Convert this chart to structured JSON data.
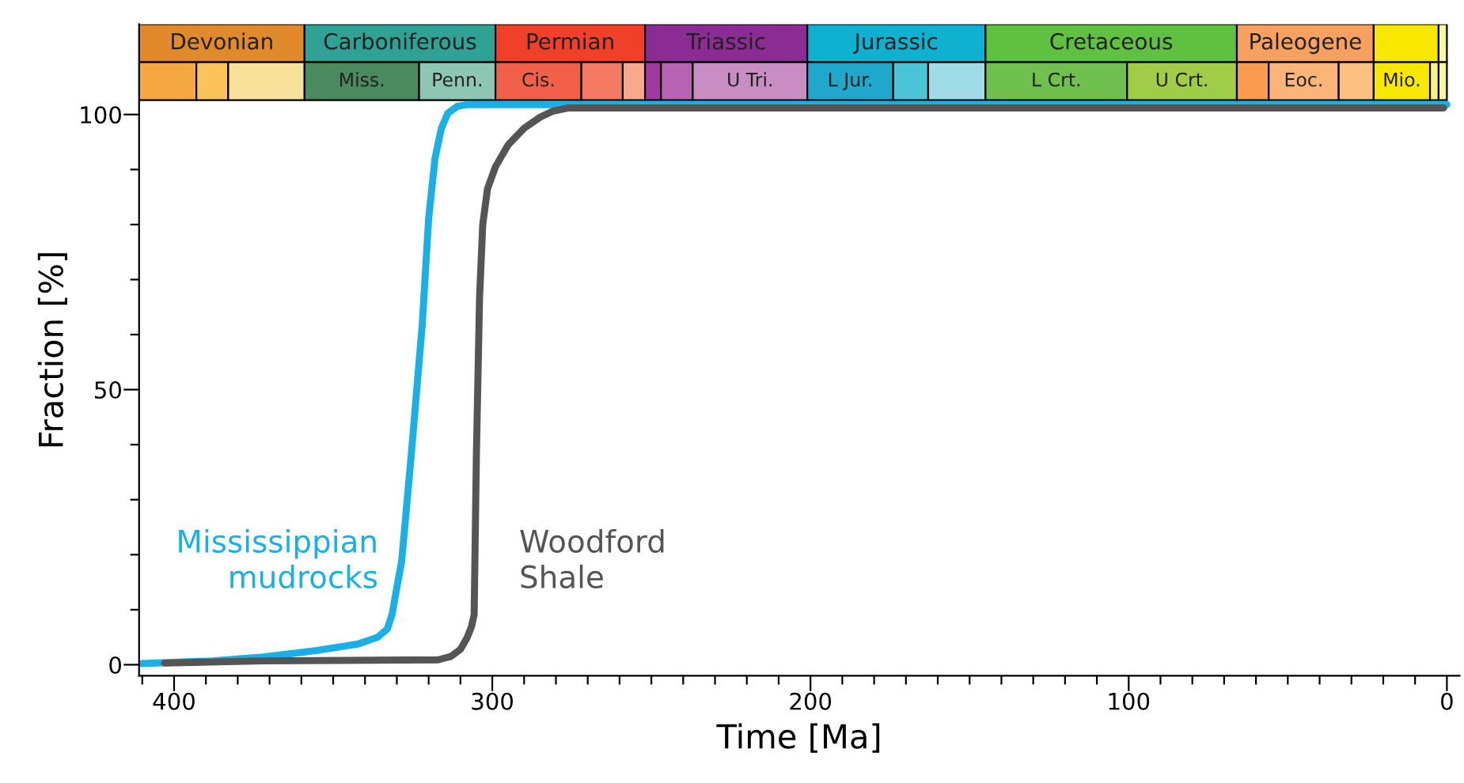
{
  "chart_data": {
    "type": "line",
    "xlabel": "Time [Ma]",
    "ylabel": "Fraction [%]",
    "xlim": [
      411,
      -4
    ],
    "ylim": [
      -2,
      116.4
    ],
    "xticks": [
      {
        "value": 410,
        "label": null
      },
      400,
      {
        "value": 390,
        "label": null
      },
      {
        "value": 380,
        "label": null
      },
      {
        "value": 370,
        "label": null
      },
      {
        "value": 360,
        "label": null
      },
      {
        "value": 350,
        "label": null
      },
      {
        "value": 340,
        "label": null
      },
      {
        "value": 330,
        "label": null
      },
      {
        "value": 320,
        "label": null
      },
      {
        "value": 310,
        "label": null
      },
      300,
      {
        "value": 290,
        "label": null
      },
      {
        "value": 280,
        "label": null
      },
      {
        "value": 270,
        "label": null
      },
      {
        "value": 260,
        "label": null
      },
      {
        "value": 250,
        "label": null
      },
      {
        "value": 240,
        "label": null
      },
      {
        "value": 230,
        "label": null
      },
      {
        "value": 220,
        "label": null
      },
      {
        "value": 210,
        "label": null
      },
      200,
      {
        "value": 190,
        "label": null
      },
      {
        "value": 180,
        "label": null
      },
      {
        "value": 170,
        "label": null
      },
      {
        "value": 160,
        "label": null
      },
      {
        "value": 150,
        "label": null
      },
      {
        "value": 140,
        "label": null
      },
      {
        "value": 130,
        "label": null
      },
      {
        "value": 120,
        "label": null
      },
      {
        "value": 110,
        "label": null
      },
      100,
      {
        "value": 90,
        "label": null
      },
      {
        "value": 80,
        "label": null
      },
      {
        "value": 70,
        "label": null
      },
      {
        "value": 60,
        "label": null
      },
      {
        "value": 50,
        "label": null
      },
      {
        "value": 40,
        "label": null
      },
      {
        "value": 30,
        "label": null
      },
      {
        "value": 20,
        "label": null
      },
      {
        "value": 10,
        "label": null
      },
      0
    ],
    "yticks": [
      0,
      {
        "value": 10,
        "label": null
      },
      {
        "value": 20,
        "label": null
      },
      {
        "value": 30,
        "label": null
      },
      {
        "value": 40,
        "label": null
      },
      50,
      {
        "value": 60,
        "label": null
      },
      {
        "value": 70,
        "label": null
      },
      {
        "value": 80,
        "label": null
      },
      {
        "value": 90,
        "label": null
      },
      100
    ],
    "marker": "none",
    "line_style": "solid",
    "series": [
      {
        "name": "Mississippian mudrocks",
        "color": "#1ab0e6",
        "x": [
          410,
          388,
          372,
          355,
          342,
          336,
          333,
          331.5,
          330,
          328.5,
          325.5,
          322,
          320,
          318,
          316,
          314,
          311,
          308,
          0
        ],
        "values": [
          0.2,
          0.7,
          1.4,
          2.6,
          3.8,
          5,
          6.5,
          9.1,
          14,
          18.7,
          37.9,
          61.9,
          81.1,
          92,
          97.5,
          100.2,
          101.5,
          101.8,
          101.8
        ]
      },
      {
        "name": "Woodford Shale",
        "color": "#555555",
        "x": [
          403,
          372,
          317,
          313,
          310,
          308,
          306.5,
          305.7,
          305,
          304,
          303,
          301.5,
          299,
          295,
          290,
          285,
          281,
          276,
          1
        ],
        "values": [
          0.3,
          0.7,
          0.9,
          1.5,
          2.8,
          4.8,
          7,
          9.1,
          37.9,
          66.7,
          80,
          86.5,
          90.5,
          94.5,
          97.5,
          99.5,
          100.6,
          101.2,
          101.2
        ]
      }
    ],
    "bands": [
      {
        "axis": "x",
        "from": 411,
        "to": 359,
        "label": "Devonian",
        "color": "#e08a2c"
      },
      {
        "axis": "x",
        "from": 359,
        "to": 299,
        "label": "Carboniferous",
        "color": "#30a295"
      },
      {
        "axis": "x",
        "from": 299,
        "to": 252,
        "label": "Permian",
        "color": "#f0402a"
      },
      {
        "axis": "x",
        "from": 252,
        "to": 201,
        "label": "Triassic",
        "color": "#8b2b94"
      },
      {
        "axis": "x",
        "from": 201,
        "to": 145,
        "label": "Jurassic",
        "color": "#10b0d0"
      },
      {
        "axis": "x",
        "from": 145,
        "to": 66,
        "label": "Cretaceous",
        "color": "#60c040"
      },
      {
        "axis": "x",
        "from": 66,
        "to": 23,
        "label": "Paleogene",
        "color": "#f8a060"
      },
      {
        "axis": "x",
        "from": 23,
        "to": 2.6,
        "label": null,
        "color": "#f8e800"
      },
      {
        "axis": "x",
        "from": 2.6,
        "to": 0,
        "label": null,
        "color": "#fff6a0"
      },
      {
        "axis": "x",
        "from": 411,
        "to": 393,
        "label": null,
        "color": "#f5a742"
      },
      {
        "axis": "x",
        "from": 393,
        "to": 383,
        "label": null,
        "color": "#fbc35a"
      },
      {
        "axis": "x",
        "from": 383,
        "to": 359,
        "label": null,
        "color": "#f6e09a"
      },
      {
        "axis": "x",
        "from": 359,
        "to": 323,
        "label": "Miss.",
        "color": "#4a8a5e"
      },
      {
        "axis": "x",
        "from": 323,
        "to": 299,
        "label": "Penn.",
        "color": "#8ec6b4"
      },
      {
        "axis": "x",
        "from": 299,
        "to": 272,
        "label": "Cis.",
        "color": "#f2604a"
      },
      {
        "axis": "x",
        "from": 272,
        "to": 259,
        "label": null,
        "color": "#f57a64"
      },
      {
        "axis": "x",
        "from": 259,
        "to": 252,
        "label": null,
        "color": "#f9a890"
      },
      {
        "axis": "x",
        "from": 252,
        "to": 247,
        "label": null,
        "color": "#a03aa0"
      },
      {
        "axis": "x",
        "from": 247,
        "to": 237,
        "label": null,
        "color": "#b862b4"
      },
      {
        "axis": "x",
        "from": 237,
        "to": 201,
        "label": "U Tri.",
        "color": "#c88ec4"
      },
      {
        "axis": "x",
        "from": 201,
        "to": 174,
        "label": "L Jur.",
        "color": "#20a8cc"
      },
      {
        "axis": "x",
        "from": 174,
        "to": 163,
        "label": null,
        "color": "#4cc4d8"
      },
      {
        "axis": "x",
        "from": 163,
        "to": 145,
        "label": null,
        "color": "#a0dce8"
      },
      {
        "axis": "x",
        "from": 145,
        "to": 100.5,
        "label": "L Crt.",
        "color": "#70c050"
      },
      {
        "axis": "x",
        "from": 100.5,
        "to": 66,
        "label": "U Crt.",
        "color": "#a0cc48"
      },
      {
        "axis": "x",
        "from": 66,
        "to": 56,
        "label": null,
        "color": "#f89a50"
      },
      {
        "axis": "x",
        "from": 56,
        "to": 34,
        "label": "Eoc.",
        "color": "#fcb478"
      },
      {
        "axis": "x",
        "from": 34,
        "to": 23,
        "label": null,
        "color": "#fcc080"
      },
      {
        "axis": "x",
        "from": 23,
        "to": 5.3,
        "label": "Mio.",
        "color": "#f8e800"
      },
      {
        "axis": "x",
        "from": 5.3,
        "to": 2.6,
        "label": null,
        "color": "#fff080"
      },
      {
        "axis": "x",
        "from": 2.6,
        "to": 0,
        "label": null,
        "color": "#fff6a0"
      }
    ]
  }
}
